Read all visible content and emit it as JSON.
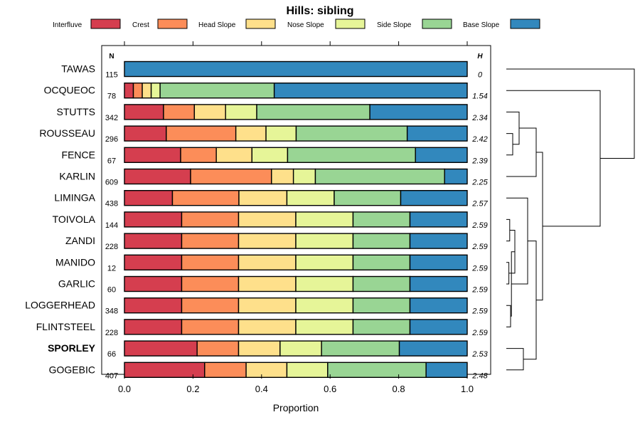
{
  "chart_data": {
    "type": "bar",
    "orientation": "horizontal-stacked",
    "title": "Hills: sibling",
    "xlabel": "Proportion",
    "ylabel": "",
    "xlim": [
      0,
      1
    ],
    "xticks": [
      "0.0",
      "0.2",
      "0.4",
      "0.6",
      "0.8",
      "1.0"
    ],
    "n_header": "N",
    "h_header": "H",
    "legend_position": "top",
    "highlight_label": "SPORLEY",
    "categories": [
      "TAWAS",
      "OCQUEOC",
      "STUTTS",
      "ROUSSEAU",
      "FENCE",
      "KARLIN",
      "LIMINGA",
      "TOIVOLA",
      "ZANDI",
      "MANIDO",
      "GARLIC",
      "LOGGERHEAD",
      "FLINTSTEEL",
      "SPORLEY",
      "GOGEBIC"
    ],
    "n": [
      "115",
      "78",
      "342",
      "296",
      "67",
      "609",
      "438",
      "144",
      "228",
      "12",
      "60",
      "348",
      "228",
      "66",
      "407"
    ],
    "h": [
      "0",
      "1.54",
      "2.34",
      "2.42",
      "2.39",
      "2.25",
      "2.57",
      "2.59",
      "2.59",
      "2.59",
      "2.59",
      "2.59",
      "2.59",
      "2.53",
      "2.48"
    ],
    "series": [
      {
        "name": "Interfluve",
        "color": "#d53e4f",
        "values": [
          0,
          0.026,
          0.114,
          0.122,
          0.164,
          0.193,
          0.14,
          0.167,
          0.167,
          0.167,
          0.167,
          0.167,
          0.167,
          0.212,
          0.234
        ]
      },
      {
        "name": "Crest",
        "color": "#fc8d59",
        "values": [
          0,
          0.026,
          0.09,
          0.203,
          0.104,
          0.236,
          0.194,
          0.166,
          0.166,
          0.166,
          0.166,
          0.166,
          0.166,
          0.121,
          0.121
        ]
      },
      {
        "name": "Head Slope",
        "color": "#fee08b",
        "values": [
          0,
          0.026,
          0.091,
          0.088,
          0.104,
          0.064,
          0.14,
          0.167,
          0.167,
          0.167,
          0.167,
          0.167,
          0.167,
          0.121,
          0.119
        ]
      },
      {
        "name": "Nose Slope",
        "color": "#e6f598",
        "values": [
          0,
          0.026,
          0.091,
          0.088,
          0.104,
          0.064,
          0.138,
          0.167,
          0.167,
          0.167,
          0.167,
          0.167,
          0.167,
          0.121,
          0.119
        ]
      },
      {
        "name": "Side Slope",
        "color": "#99d594",
        "values": [
          0,
          0.333,
          0.33,
          0.324,
          0.373,
          0.377,
          0.194,
          0.166,
          0.166,
          0.166,
          0.166,
          0.166,
          0.166,
          0.227,
          0.287
        ]
      },
      {
        "name": "Base Slope",
        "color": "#3288bd",
        "values": [
          1.0,
          0.563,
          0.284,
          0.175,
          0.151,
          0.066,
          0.194,
          0.167,
          0.167,
          0.167,
          0.167,
          0.167,
          0.167,
          0.198,
          0.12
        ]
      }
    ],
    "dendrogram_merges": [
      [
        7,
        8,
        0.08
      ],
      [
        9,
        10,
        0.06
      ],
      [
        11,
        12,
        0.1
      ],
      [
        -1,
        -2,
        0.2
      ],
      [
        -3,
        -4,
        0.12
      ],
      [
        6,
        -5,
        0.5
      ],
      [
        13,
        14,
        0.4
      ],
      [
        -6,
        -7,
        0.7
      ],
      [
        3,
        4,
        0.15
      ],
      [
        -9,
        2,
        0.3
      ],
      [
        -10,
        5,
        0.7
      ],
      [
        -11,
        -8,
        0.85
      ],
      [
        1,
        -12,
        2.2
      ],
      [
        0,
        -13,
        3.0
      ]
    ]
  }
}
